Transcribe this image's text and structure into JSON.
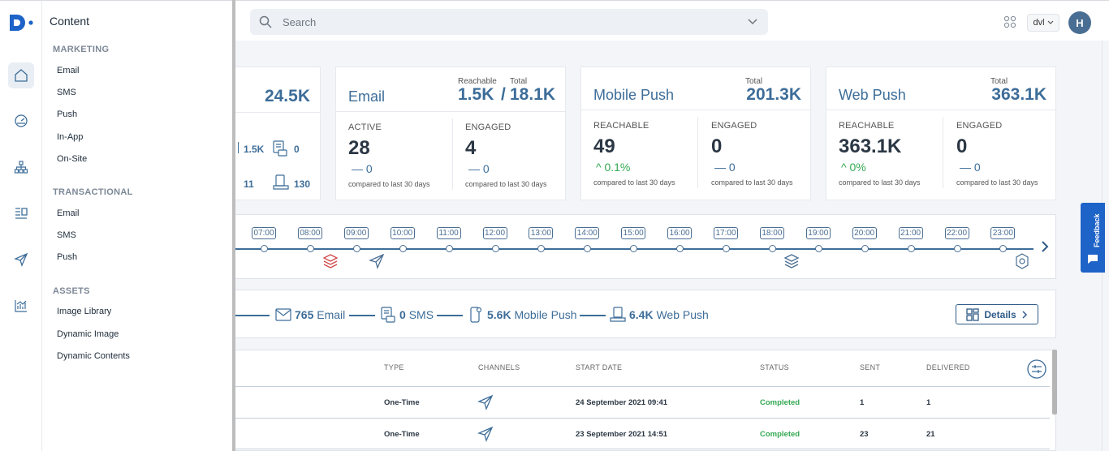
{
  "flyout": {
    "title": "Content",
    "marketing": {
      "heading": "MARKETING",
      "items": [
        "Email",
        "SMS",
        "Push",
        "In-App",
        "On-Site"
      ]
    },
    "transactional": {
      "heading": "TRANSACTIONAL",
      "items": [
        "Email",
        "SMS",
        "Push"
      ]
    },
    "assets": {
      "heading": "ASSETS",
      "items": [
        "Image Library",
        "Dynamic Image",
        "Dynamic Contents"
      ]
    }
  },
  "rail": {
    "icons": [
      "home-icon",
      "dashboard-icon",
      "sitemap-icon",
      "content-icon",
      "send-icon",
      "analytics-icon"
    ]
  },
  "topbar": {
    "search_placeholder": "Search",
    "workspace": "dvl",
    "avatar_initial": "H"
  },
  "partial_card": {
    "total": "24.5K",
    "sms": "1.5K",
    "push": "0",
    "inapp": "11",
    "onsite": "130"
  },
  "email_card": {
    "title": "Email",
    "reachable_label": "Reachable",
    "total_label": "Total",
    "reachable": "1.5K",
    "separator": "/",
    "total": "18.1K",
    "metrics": [
      {
        "label": "ACTIVE",
        "value": "28",
        "delta": "— 0",
        "compare": "compared to last 30 days"
      },
      {
        "label": "ENGAGED",
        "value": "4",
        "delta": "— 0",
        "compare": "compared to last 30 days"
      }
    ]
  },
  "mobile_card": {
    "title": "Mobile Push",
    "total_label": "Total",
    "total": "201.3K",
    "metrics": [
      {
        "label": "REACHABLE",
        "value": "49",
        "delta": "^ 0.1%",
        "compare": "compared to last 30 days"
      },
      {
        "label": "ENGAGED",
        "value": "0",
        "delta": "— 0",
        "compare": "compared to last 30 days"
      }
    ]
  },
  "web_card": {
    "title": "Web Push",
    "total_label": "Total",
    "total": "363.1K",
    "metrics": [
      {
        "label": "REACHABLE",
        "value": "363.1K",
        "delta": "^ 0%",
        "compare": "compared to last 30 days"
      },
      {
        "label": "ENGAGED",
        "value": "0",
        "delta": "— 0",
        "compare": "compared to last 30 days"
      }
    ]
  },
  "timeline": {
    "hours": [
      "07:00",
      "08:00",
      "09:00",
      "10:00",
      "11:00",
      "12:00",
      "13:00",
      "14:00",
      "15:00",
      "16:00",
      "17:00",
      "18:00",
      "19:00",
      "20:00",
      "21:00",
      "22:00",
      "23:00"
    ]
  },
  "summary": {
    "email_value": "765",
    "email_label": "Email",
    "sms_value": "0",
    "sms_label": "SMS",
    "mobile_value": "5.6K",
    "mobile_label": "Mobile Push",
    "web_value": "6.4K",
    "web_label": "Web Push",
    "details_label": "Details"
  },
  "table": {
    "headers": [
      "TYPE",
      "CHANNELS",
      "START DATE",
      "STATUS",
      "SENT",
      "DELIVERED"
    ],
    "rows": [
      {
        "type": "One-Time",
        "start_date": "24 September 2021 09:41",
        "status": "Completed",
        "sent": "1",
        "delivered": "1"
      },
      {
        "type": "One-Time",
        "start_date": "23 September 2021 14:51",
        "status": "Completed",
        "sent": "23",
        "delivered": "21"
      }
    ]
  },
  "feedback": {
    "label": "Feedback"
  },
  "colors": {
    "accent": "#3d6d99",
    "success": "#34a853",
    "feedback_bg": "#1e63c8"
  }
}
